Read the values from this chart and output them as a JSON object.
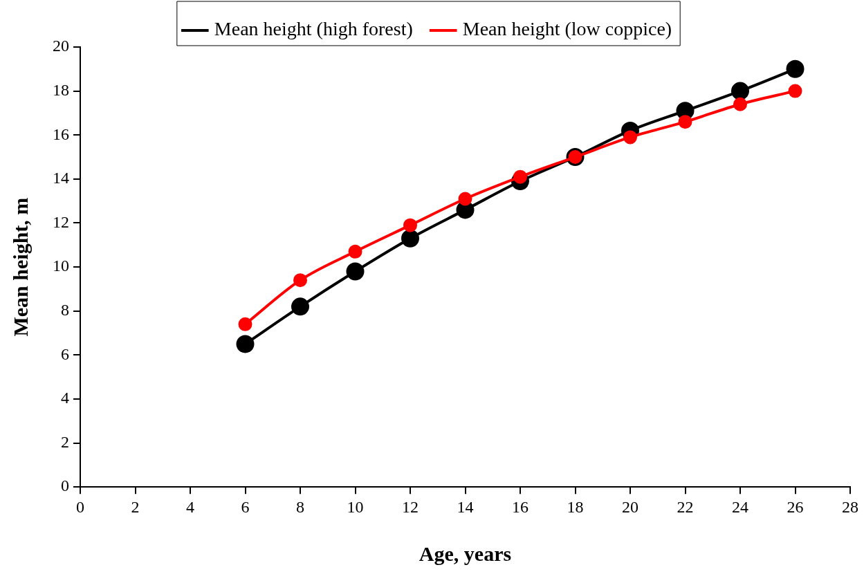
{
  "chart_data": {
    "type": "line",
    "xlabel": "Age, years",
    "ylabel": "Mean height, m",
    "xlim": [
      0,
      28
    ],
    "xticks": [
      0,
      2,
      4,
      6,
      8,
      10,
      12,
      14,
      16,
      18,
      20,
      22,
      24,
      26,
      28
    ],
    "ylim": [
      0,
      20
    ],
    "yticks": [
      0,
      2,
      4,
      6,
      8,
      10,
      12,
      14,
      16,
      18,
      20
    ],
    "x": [
      6,
      8,
      10,
      12,
      14,
      16,
      18,
      20,
      22,
      24,
      26
    ],
    "series": [
      {
        "name": "Mean height (high forest)",
        "color": "#000000",
        "values": [
          6.5,
          8.2,
          9.8,
          11.3,
          12.6,
          13.9,
          15.0,
          16.2,
          17.1,
          18.0,
          19.0
        ]
      },
      {
        "name": "Mean height (low coppice)",
        "color": "#ff0000",
        "values": [
          7.4,
          9.4,
          10.7,
          11.9,
          13.1,
          14.1,
          15.0,
          15.9,
          16.6,
          17.4,
          18.0
        ]
      }
    ],
    "grid": false,
    "legend": "top",
    "marker": "circle",
    "line_style": "solid"
  }
}
